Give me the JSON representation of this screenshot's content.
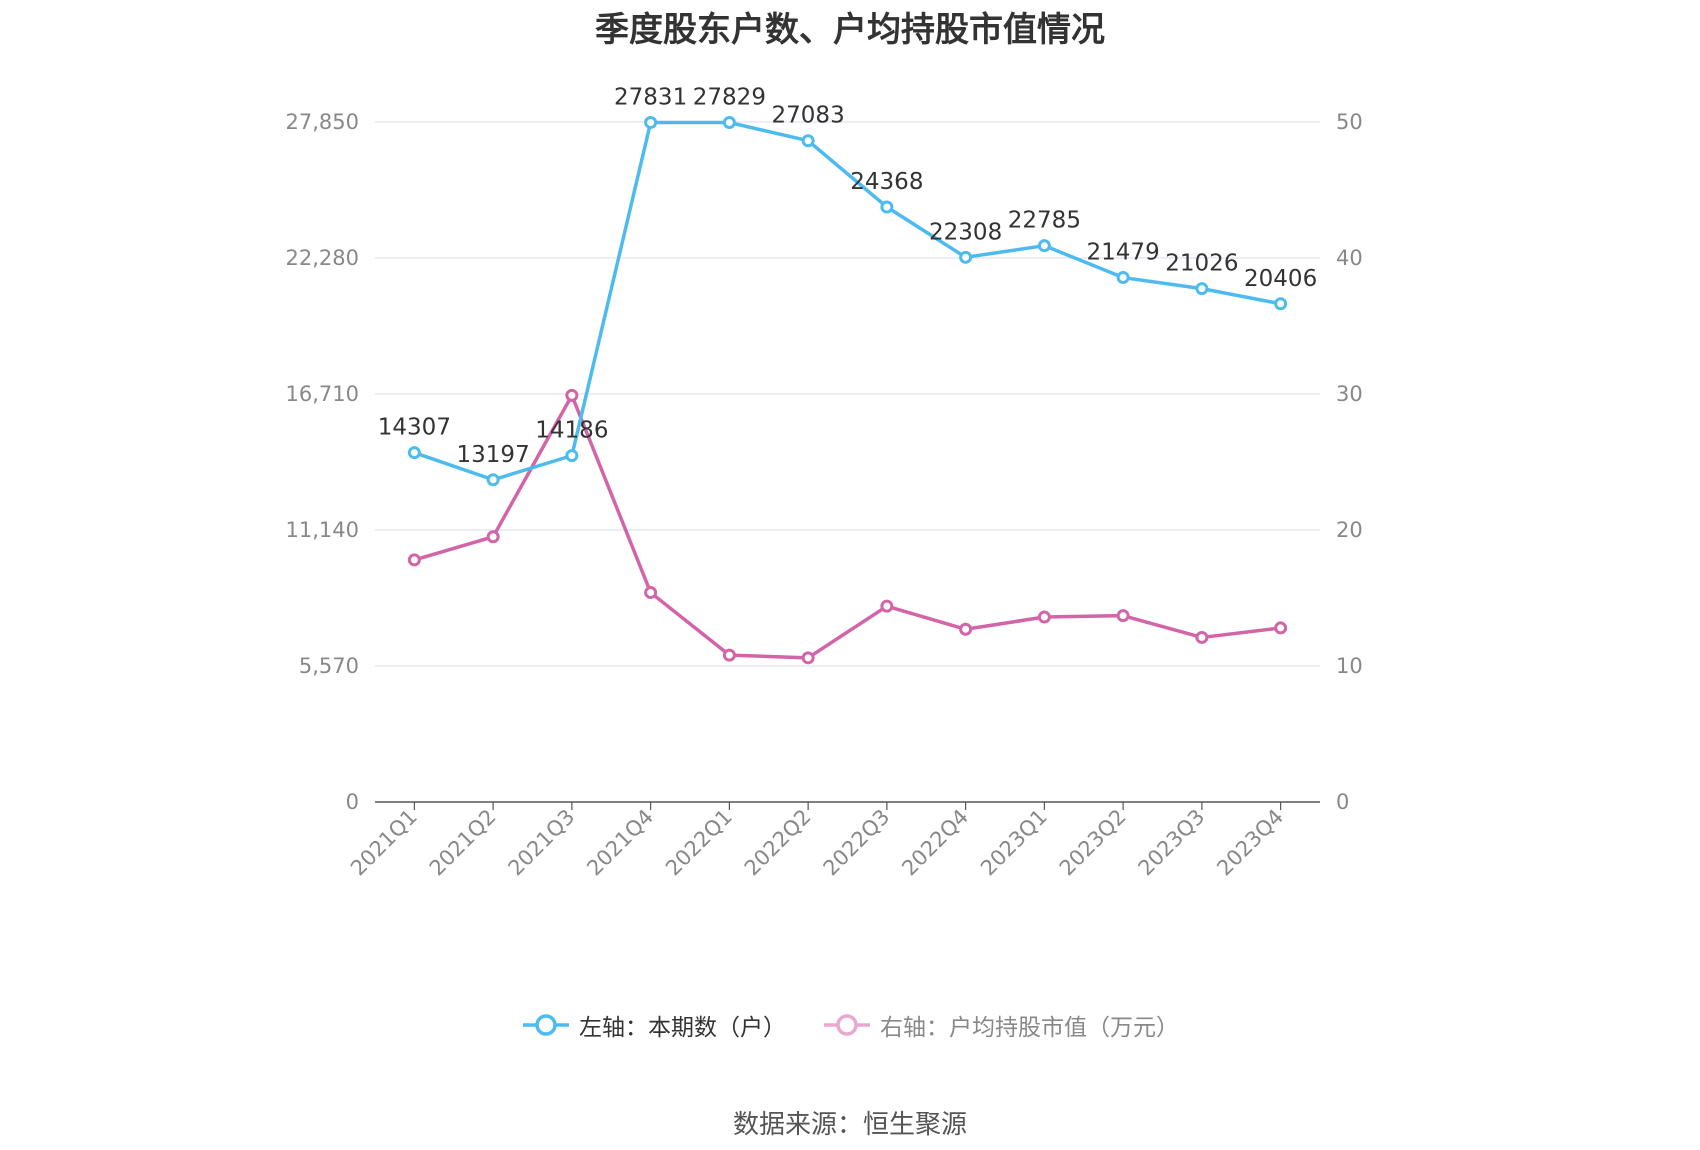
{
  "title": "季度股东户数、户均持股市值情况",
  "source_note": "数据来源：恒生聚源",
  "colors": {
    "series_left": "#4dbbee",
    "series_right": "#d264a8",
    "series_right_legend": "#e8a8cf",
    "grid": "#e0e3ef",
    "axis": "#555555"
  },
  "chart_data": {
    "type": "line",
    "title": "季度股东户数、户均持股市值情况",
    "categories": [
      "2021Q1",
      "2021Q2",
      "2021Q3",
      "2021Q4",
      "2022Q1",
      "2022Q2",
      "2022Q3",
      "2022Q4",
      "2023Q1",
      "2023Q2",
      "2023Q3",
      "2023Q4"
    ],
    "left_axis": {
      "ticks": [
        "0",
        "5,570",
        "11,140",
        "16,710",
        "22,280",
        "27,850"
      ],
      "ylim": [
        0,
        27850
      ]
    },
    "right_axis": {
      "ticks": [
        "0",
        "10",
        "20",
        "30",
        "40",
        "50"
      ],
      "ylim": [
        0,
        50
      ]
    },
    "grid": true,
    "legend_position": "bottom",
    "series": [
      {
        "name": "左轴：本期数（户）",
        "axis": "left",
        "values": [
          14307,
          13197,
          14186,
          27831,
          27829,
          27083,
          24368,
          22308,
          22785,
          21479,
          21026,
          20406
        ],
        "labels": [
          "14307",
          "13197",
          "14186",
          "27831",
          "27829",
          "27083",
          "24368",
          "22308",
          "22785",
          "21479",
          "21026",
          "20406"
        ]
      },
      {
        "name": "右轴：户均持股市值（万元）",
        "axis": "right",
        "values": [
          17.8,
          19.5,
          29.9,
          15.4,
          10.8,
          10.6,
          14.4,
          12.7,
          13.6,
          13.7,
          12.1,
          12.8
        ]
      }
    ]
  }
}
